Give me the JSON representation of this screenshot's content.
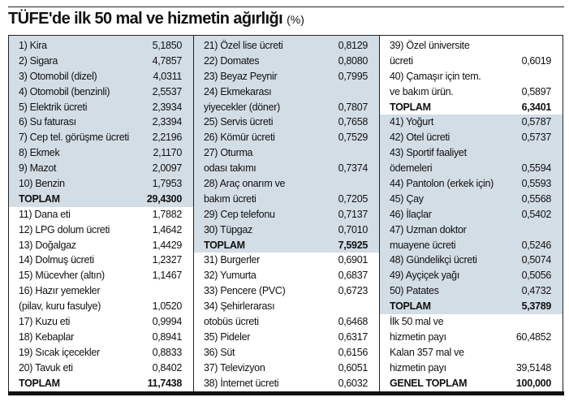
{
  "title": {
    "main": "TÜFE'de ilk 50 mal ve hizmetin ağırlığı",
    "unit": "(%)"
  },
  "shade_color": "#d3dde6",
  "columns": [
    [
      {
        "label": "1) Kira",
        "value": "5,1850",
        "shaded": true
      },
      {
        "label": "2) Sigara",
        "value": "4,7857",
        "shaded": true
      },
      {
        "label": "3) Otomobil (dizel)",
        "value": "4,0311",
        "shaded": true
      },
      {
        "label": "4) Otomobil (benzinli)",
        "value": "2,5537",
        "shaded": true
      },
      {
        "label": "5) Elektrik ücreti",
        "value": "2,3934",
        "shaded": true
      },
      {
        "label": "6) Su faturası",
        "value": "2,3394",
        "shaded": true
      },
      {
        "label": "7) Cep tel. görüşme ücreti",
        "value": "2,2196",
        "shaded": true
      },
      {
        "label": "8) Ekmek",
        "value": "2,1170",
        "shaded": true
      },
      {
        "label": "9) Mazot",
        "value": "2,0097",
        "shaded": true
      },
      {
        "label": "10) Benzin",
        "value": "1,7953",
        "shaded": true
      },
      {
        "label": "TOPLAM",
        "value": "29,4300",
        "shaded": true,
        "total": true
      },
      {
        "label": "11) Dana eti",
        "value": "1,7882"
      },
      {
        "label": "12) LPG dolum ücreti",
        "value": "1,4642"
      },
      {
        "label": "13) Doğalgaz",
        "value": "1,4429"
      },
      {
        "label": "14) Dolmuş ücreti",
        "value": "1,2327"
      },
      {
        "label": "15) Mücevher (altın)",
        "value": "1,1467"
      },
      {
        "label": "16) Hazır yemekler",
        "value": ""
      },
      {
        "label": "(pilav, kuru fasulye)",
        "value": "1,0520"
      },
      {
        "label": "17) Kuzu eti",
        "value": "0,9994"
      },
      {
        "label": "18) Kebaplar",
        "value": "0,8941"
      },
      {
        "label": "19) Sıcak içecekler",
        "value": "0,8833"
      },
      {
        "label": "20) Tavuk eti",
        "value": "0,8402"
      },
      {
        "label": "TOPLAM",
        "value": "11,7438",
        "total": true
      }
    ],
    [
      {
        "label": "21) Özel lise ücreti",
        "value": "0,8129",
        "shaded": true
      },
      {
        "label": "22) Domates",
        "value": "0,8080",
        "shaded": true
      },
      {
        "label": "23) Beyaz Peynir",
        "value": "0,7995",
        "shaded": true
      },
      {
        "label": "24) Ekmekarası",
        "value": "",
        "shaded": true
      },
      {
        "label": "yiyecekler (döner)",
        "value": "0,7807",
        "shaded": true
      },
      {
        "label": "25) Servis ücreti",
        "value": "0,7658",
        "shaded": true
      },
      {
        "label": "26) Kömür ücreti",
        "value": "0,7529",
        "shaded": true
      },
      {
        "label": "27) Oturma",
        "value": "",
        "shaded": true
      },
      {
        "label": "odası takımı",
        "value": "0,7374",
        "shaded": true
      },
      {
        "label": "28) Araç onarım ve",
        "value": "",
        "shaded": true
      },
      {
        "label": "bakım ücreti",
        "value": "0,7205",
        "shaded": true
      },
      {
        "label": "29) Cep telefonu",
        "value": "0,7137",
        "shaded": true
      },
      {
        "label": "30) Tüpgaz",
        "value": "0,7010",
        "shaded": true
      },
      {
        "label": "TOPLAM",
        "value": "7,5925",
        "shaded": true,
        "total": true
      },
      {
        "label": "31) Burgerler",
        "value": "0,6901"
      },
      {
        "label": "32) Yumurta",
        "value": "0,6837"
      },
      {
        "label": "33) Pencere (PVC)",
        "value": "0,6723"
      },
      {
        "label": "34) Şehirlerarası",
        "value": ""
      },
      {
        "label": "otobüs ücreti",
        "value": "0,6468"
      },
      {
        "label": "35) Pideler",
        "value": "0,6317"
      },
      {
        "label": "36) Süt",
        "value": "0,6156"
      },
      {
        "label": "37) Televizyon",
        "value": "0,6051"
      },
      {
        "label": "38) İnternet ücreti",
        "value": "0,6032"
      }
    ],
    [
      {
        "label": "39) Özel üniversite",
        "value": ""
      },
      {
        "label": "ücreti",
        "value": "0,6019"
      },
      {
        "label": "40) Çamaşır için tem.",
        "value": ""
      },
      {
        "label": "ve bakım ürün.",
        "value": "0,5897"
      },
      {
        "label": "TOPLAM",
        "value": "6,3401",
        "total": true
      },
      {
        "label": "41) Yoğurt",
        "value": "0,5787",
        "shaded": true
      },
      {
        "label": "42) Otel ücreti",
        "value": "0,5737",
        "shaded": true
      },
      {
        "label": "43) Sportif faaliyet",
        "value": "",
        "shaded": true
      },
      {
        "label": "ödemeleri",
        "value": "0,5594",
        "shaded": true
      },
      {
        "label": "44) Pantolon (erkek için)",
        "value": "0,5593",
        "shaded": true
      },
      {
        "label": "45) Çay",
        "value": "0,5568",
        "shaded": true
      },
      {
        "label": "46) İlaçlar",
        "value": "0,5402",
        "shaded": true
      },
      {
        "label": "47) Uzman doktor",
        "value": "",
        "shaded": true
      },
      {
        "label": "muayene ücreti",
        "value": "0,5246",
        "shaded": true
      },
      {
        "label": "48) Gündelikçi ücreti",
        "value": "0,5074",
        "shaded": true
      },
      {
        "label": "49) Ayçiçek yağı",
        "value": "0,5056",
        "shaded": true
      },
      {
        "label": "50) Patates",
        "value": "0,4732",
        "shaded": true
      },
      {
        "label": "TOPLAM",
        "value": "5,3789",
        "shaded": true,
        "total": true
      },
      {
        "label": "İlk 50 mal ve",
        "value": ""
      },
      {
        "label": "hizmetin payı",
        "value": "60,4852"
      },
      {
        "label": "Kalan 357 mal ve",
        "value": ""
      },
      {
        "label": "hizmetin payı",
        "value": "39,5148"
      },
      {
        "label": "GENEL TOPLAM",
        "value": "100,000",
        "total": true
      }
    ]
  ]
}
